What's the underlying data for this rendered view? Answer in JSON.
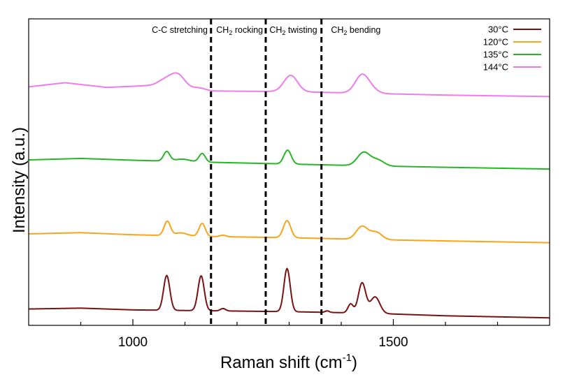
{
  "chart_data": {
    "type": "line",
    "title": "",
    "xlabel": "Raman shift (cm",
    "xlabel_superscript": "-1",
    "xlabel_suffix": ")",
    "ylabel": "Intensity (a.u.)",
    "xlim": [
      800,
      1800
    ],
    "ylim": [
      0,
      1
    ],
    "x_ticks": [
      1000,
      1500
    ],
    "x_minor_step": 100,
    "y_tick_labels": false,
    "grid": false,
    "legend_position": "top-right",
    "region_dividers": [
      1150,
      1255,
      1362
    ],
    "region_labels": [
      {
        "x": 1090,
        "base": "C-C stretching",
        "sub": "",
        "rest": ""
      },
      {
        "x": 1205,
        "base": "CH",
        "sub": "2",
        "rest": " rocking"
      },
      {
        "x": 1308,
        "base": "CH",
        "sub": "2",
        "rest": " twisting"
      },
      {
        "x": 1428,
        "base": "CH",
        "sub": "2",
        "rest": " bending"
      }
    ],
    "series": [
      {
        "name": "30°C",
        "color": "#7b1212",
        "baseline": [
          [
            800,
            0.046
          ],
          [
            900,
            0.049
          ],
          [
            1000,
            0.043
          ],
          [
            1150,
            0.04
          ],
          [
            1300,
            0.037
          ],
          [
            1450,
            0.032
          ],
          [
            1600,
            0.023
          ],
          [
            1800,
            0.016
          ]
        ],
        "peaks": [
          [
            1065,
            0.118,
            6
          ],
          [
            1131,
            0.118,
            6
          ],
          [
            1173,
            0.008,
            5
          ],
          [
            1296,
            0.146,
            6
          ],
          [
            1373,
            0.005,
            4
          ],
          [
            1418,
            0.03,
            5
          ],
          [
            1440,
            0.102,
            7
          ],
          [
            1465,
            0.056,
            9
          ]
        ]
      },
      {
        "name": "120°C",
        "color": "#f9a51c",
        "baseline": [
          [
            800,
            0.301
          ],
          [
            900,
            0.305
          ],
          [
            1000,
            0.298
          ],
          [
            1150,
            0.292
          ],
          [
            1300,
            0.288
          ],
          [
            1450,
            0.282
          ],
          [
            1600,
            0.277
          ],
          [
            1800,
            0.271
          ]
        ],
        "peaks": [
          [
            1066,
            0.048,
            6
          ],
          [
            1092,
            0.01,
            12
          ],
          [
            1133,
            0.044,
            6
          ],
          [
            1173,
            0.005,
            6
          ],
          [
            1296,
            0.058,
            7
          ],
          [
            1440,
            0.044,
            11
          ],
          [
            1467,
            0.025,
            11
          ]
        ]
      },
      {
        "name": "135°C",
        "color": "#27b626",
        "baseline": [
          [
            800,
            0.552
          ],
          [
            900,
            0.557
          ],
          [
            1000,
            0.551
          ],
          [
            1150,
            0.544
          ],
          [
            1300,
            0.538
          ],
          [
            1450,
            0.532
          ],
          [
            1600,
            0.527
          ],
          [
            1800,
            0.521
          ]
        ],
        "peaks": [
          [
            1065,
            0.032,
            6
          ],
          [
            1095,
            0.008,
            14
          ],
          [
            1133,
            0.029,
            6
          ],
          [
            1297,
            0.047,
            7
          ],
          [
            1443,
            0.045,
            12
          ],
          [
            1470,
            0.02,
            12
          ]
        ]
      },
      {
        "name": "144°C",
        "color": "#ee7bee",
        "baseline": [
          [
            800,
            0.8
          ],
          [
            870,
            0.814
          ],
          [
            950,
            0.798
          ],
          [
            1050,
            0.806
          ],
          [
            1150,
            0.786
          ],
          [
            1300,
            0.784
          ],
          [
            1450,
            0.778
          ],
          [
            1600,
            0.772
          ],
          [
            1800,
            0.767
          ]
        ],
        "peaks": [
          [
            1065,
            0.022,
            14
          ],
          [
            1087,
            0.04,
            13
          ],
          [
            1128,
            0.006,
            12
          ],
          [
            1303,
            0.055,
            13
          ],
          [
            1440,
            0.062,
            13
          ],
          [
            1460,
            0.01,
            12
          ]
        ]
      }
    ]
  }
}
